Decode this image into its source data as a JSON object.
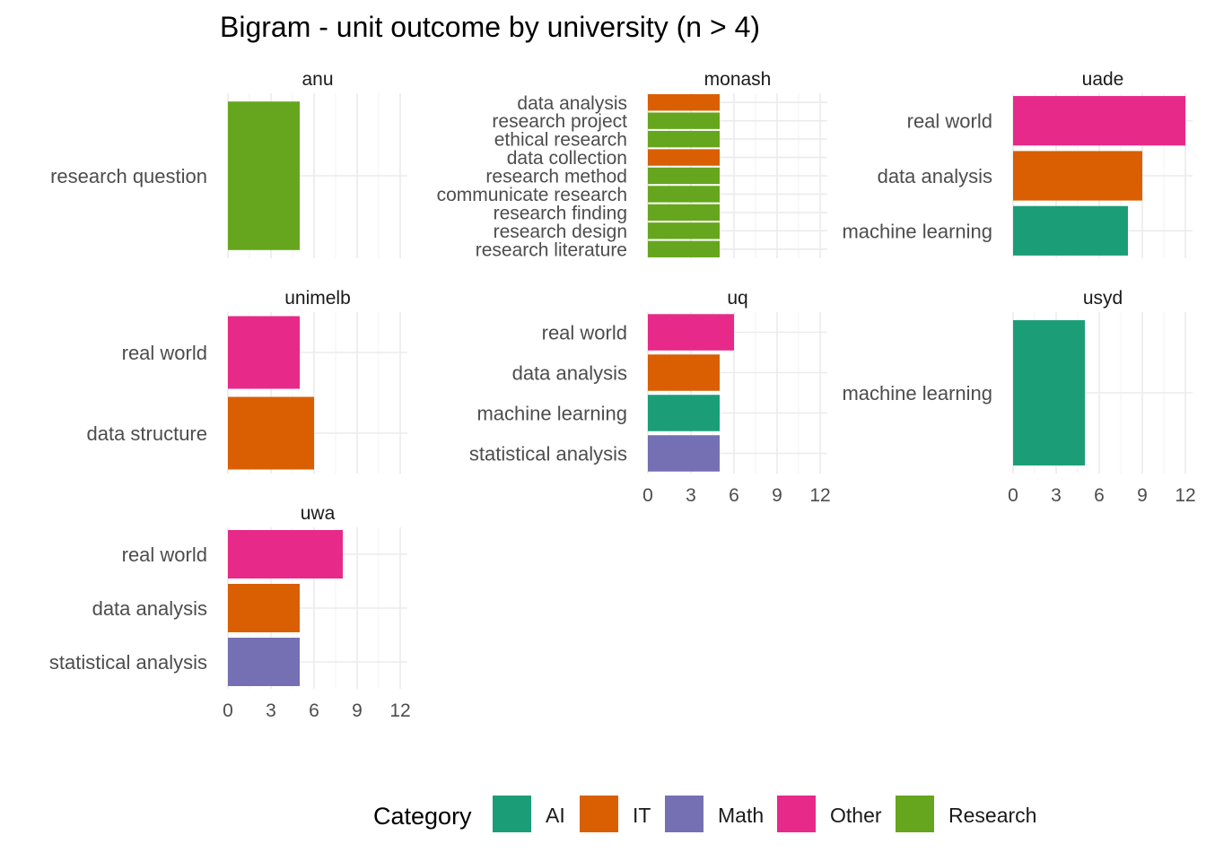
{
  "chart_data": {
    "type": "bar",
    "orientation": "horizontal",
    "title": "Bigram - unit outcome by university (n > 4)",
    "xlim": [
      0,
      12.5
    ],
    "x_ticks": [
      0,
      3,
      6,
      9,
      12
    ],
    "grid": true,
    "legend": {
      "title": "Category",
      "position": "bottom",
      "entries": [
        {
          "label": "AI",
          "color": "#1B9E77"
        },
        {
          "label": "IT",
          "color": "#D95F02"
        },
        {
          "label": "Math",
          "color": "#7570B3"
        },
        {
          "label": "Other",
          "color": "#E7298A"
        },
        {
          "label": "Research",
          "color": "#66A61E"
        }
      ]
    },
    "panels": [
      {
        "name": "anu",
        "bars": [
          {
            "label": "research question",
            "value": 5,
            "category": "Research"
          }
        ]
      },
      {
        "name": "monash",
        "bars": [
          {
            "label": "data analysis",
            "value": 5,
            "category": "IT"
          },
          {
            "label": "research project",
            "value": 5,
            "category": "Research"
          },
          {
            "label": "ethical research",
            "value": 5,
            "category": "Research"
          },
          {
            "label": "data collection",
            "value": 5,
            "category": "IT"
          },
          {
            "label": "research method",
            "value": 5,
            "category": "Research"
          },
          {
            "label": "communicate research",
            "value": 5,
            "category": "Research"
          },
          {
            "label": "research finding",
            "value": 5,
            "category": "Research"
          },
          {
            "label": "research design",
            "value": 5,
            "category": "Research"
          },
          {
            "label": "research literature",
            "value": 5,
            "category": "Research"
          }
        ]
      },
      {
        "name": "uade",
        "bars": [
          {
            "label": "real world",
            "value": 12,
            "category": "Other"
          },
          {
            "label": "data analysis",
            "value": 9,
            "category": "IT"
          },
          {
            "label": "machine learning",
            "value": 8,
            "category": "AI"
          }
        ]
      },
      {
        "name": "unimelb",
        "bars": [
          {
            "label": "real world",
            "value": 5,
            "category": "Other"
          },
          {
            "label": "data structure",
            "value": 6,
            "category": "IT"
          }
        ]
      },
      {
        "name": "uq",
        "bars": [
          {
            "label": "real world",
            "value": 6,
            "category": "Other"
          },
          {
            "label": "data analysis",
            "value": 5,
            "category": "IT"
          },
          {
            "label": "machine learning",
            "value": 5,
            "category": "AI"
          },
          {
            "label": "statistical analysis",
            "value": 5,
            "category": "Math"
          }
        ]
      },
      {
        "name": "usyd",
        "bars": [
          {
            "label": "machine learning",
            "value": 5,
            "category": "AI"
          }
        ]
      },
      {
        "name": "uwa",
        "bars": [
          {
            "label": "real world",
            "value": 8,
            "category": "Other"
          },
          {
            "label": "data analysis",
            "value": 5,
            "category": "IT"
          },
          {
            "label": "statistical analysis",
            "value": 5,
            "category": "Math"
          }
        ]
      }
    ]
  }
}
